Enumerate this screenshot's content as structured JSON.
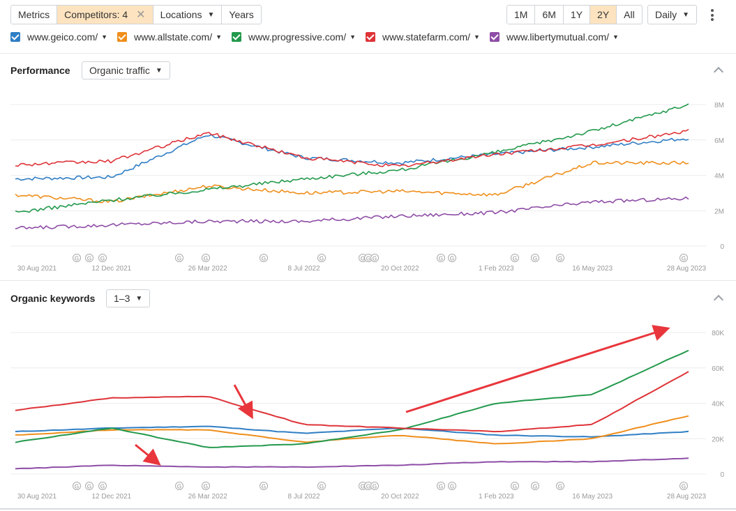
{
  "toolbar": {
    "metrics_label": "Metrics",
    "competitors_label": "Competitors: 4",
    "locations_label": "Locations",
    "years_label": "Years",
    "ranges": [
      {
        "label": "1M",
        "active": false
      },
      {
        "label": "6M",
        "active": false
      },
      {
        "label": "1Y",
        "active": false
      },
      {
        "label": "2Y",
        "active": true
      },
      {
        "label": "All",
        "active": false
      }
    ],
    "granularity_label": "Daily"
  },
  "legend": [
    {
      "domain": "www.geico.com/",
      "color": "#2f7ec4"
    },
    {
      "domain": "www.allstate.com/",
      "color": "#ef8e1b"
    },
    {
      "domain": "www.progressive.com/",
      "color": "#22994c"
    },
    {
      "domain": "www.statefarm.com/",
      "color": "#de3338"
    },
    {
      "domain": "www.libertymutual.com/",
      "color": "#8e4da6"
    }
  ],
  "performance": {
    "title": "Performance",
    "metric_label": "Organic traffic"
  },
  "keywords": {
    "title": "Organic keywords",
    "position_label": "1–3"
  },
  "event_marker_label": "G",
  "chart_data": [
    {
      "type": "line",
      "name": "Organic traffic",
      "x": [
        "30 Aug 2021",
        "12 Dec 2021",
        "26 Mar 2022",
        "8 Jul 2022",
        "20 Oct 2022",
        "1 Feb 2023",
        "16 May 2023",
        "28 Aug 2023"
      ],
      "x_tick_labels": [
        "30 Aug 2021",
        "12 Dec 2021",
        "26 Mar 2022",
        "8 Jul 2022",
        "20 Oct 2022",
        "1 Feb 2023",
        "16 May 2023",
        "28 Aug 2023"
      ],
      "y_tick_labels": [
        "8M",
        "6M",
        "4M",
        "2M",
        "0"
      ],
      "ylim": [
        0,
        8000000
      ],
      "grid": true,
      "series": [
        {
          "name": "www.geico.com/",
          "color": "#2f7ec4",
          "values": [
            3800000,
            3900000,
            6300000,
            5000000,
            4700000,
            5200000,
            5600000,
            6100000
          ]
        },
        {
          "name": "www.allstate.com/",
          "color": "#ef8e1b",
          "values": [
            2900000,
            2500000,
            3400000,
            3000000,
            3100000,
            2900000,
            4700000,
            4700000
          ]
        },
        {
          "name": "www.progressive.com/",
          "color": "#22994c",
          "values": [
            1900000,
            2600000,
            3200000,
            3800000,
            4300000,
            5300000,
            6500000,
            8000000
          ]
        },
        {
          "name": "www.statefarm.com/",
          "color": "#de3338",
          "values": [
            4600000,
            4800000,
            6400000,
            5000000,
            4500000,
            5200000,
            5700000,
            6500000
          ]
        },
        {
          "name": "www.libertymutual.com/",
          "color": "#8e4da6",
          "values": [
            1000000,
            1200000,
            1400000,
            1400000,
            1700000,
            1900000,
            2500000,
            2700000
          ]
        }
      ]
    },
    {
      "type": "line",
      "name": "Organic keywords",
      "x": [
        "30 Aug 2021",
        "12 Dec 2021",
        "26 Mar 2022",
        "8 Jul 2022",
        "20 Oct 2022",
        "1 Feb 2023",
        "16 May 2023",
        "28 Aug 2023"
      ],
      "x_tick_labels": [
        "30 Aug 2021",
        "12 Dec 2021",
        "26 Mar 2022",
        "8 Jul 2022",
        "20 Oct 2022",
        "1 Feb 2023",
        "16 May 2023",
        "28 Aug 2023"
      ],
      "y_tick_labels": [
        "80K",
        "60K",
        "40K",
        "20K",
        "0"
      ],
      "ylim": [
        0,
        80000
      ],
      "grid": true,
      "series": [
        {
          "name": "www.geico.com/",
          "color": "#2f7ec4",
          "values": [
            24000,
            26000,
            27000,
            23000,
            26000,
            22000,
            21000,
            24000
          ]
        },
        {
          "name": "www.allstate.com/",
          "color": "#ef8e1b",
          "values": [
            22000,
            25000,
            25000,
            18000,
            22000,
            17000,
            20000,
            33000
          ]
        },
        {
          "name": "www.progressive.com/",
          "color": "#22994c",
          "values": [
            18000,
            26000,
            15000,
            17000,
            25000,
            40000,
            45000,
            70000
          ]
        },
        {
          "name": "www.statefarm.com/",
          "color": "#de3338",
          "values": [
            36000,
            43000,
            44000,
            28000,
            26000,
            24000,
            28000,
            58000
          ]
        },
        {
          "name": "www.libertymutual.com/",
          "color": "#8e4da6",
          "values": [
            3000,
            5000,
            4000,
            4000,
            5000,
            7000,
            7000,
            9000
          ]
        }
      ]
    }
  ]
}
